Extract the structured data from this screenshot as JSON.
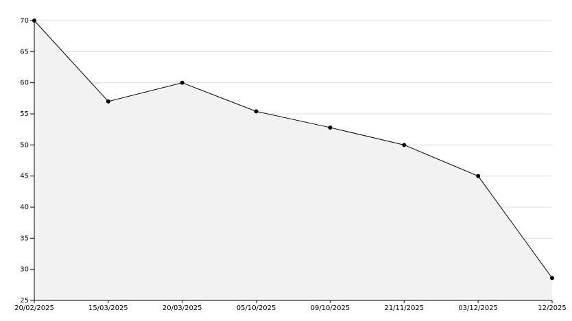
{
  "chart_data": {
    "type": "area",
    "categories": [
      "20/02/2025",
      "15/03/2025",
      "20/03/2025",
      "05/10/2025",
      "09/10/2025",
      "21/11/2025",
      "03/12/2025",
      "12/2025"
    ],
    "values": [
      70,
      57,
      60,
      55.4,
      52.8,
      50,
      45,
      28.6
    ],
    "color": "#000000",
    "fill": "#f2f2f2",
    "ylim": [
      25,
      70
    ],
    "yticks": [
      25,
      30,
      35,
      40,
      45,
      50,
      55,
      60,
      65,
      70
    ],
    "grid": true
  }
}
